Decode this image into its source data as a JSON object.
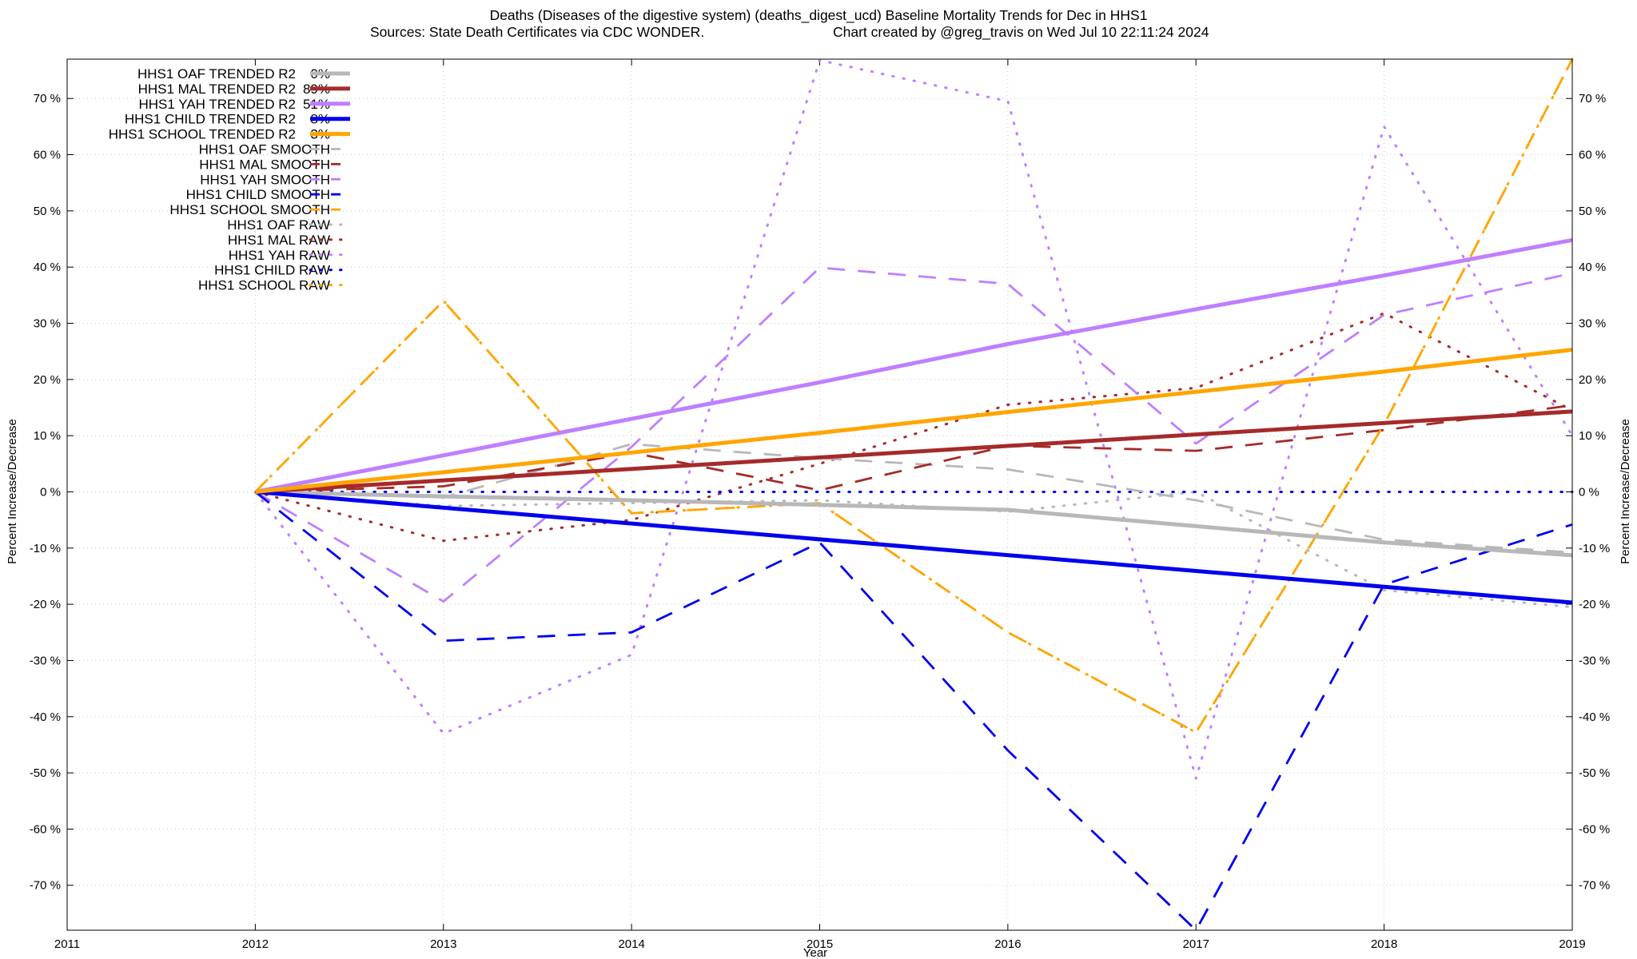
{
  "chart_data": {
    "type": "line",
    "title": "Deaths (Diseases of the digestive system) (deaths_digest_ucd)  Baseline Mortality Trends for Dec in HHS1",
    "subtitle_left": "Sources: State Death Certificates via CDC WONDER.",
    "subtitle_right": "Chart created by @greg_travis on Wed Jul 10 22:11:24 2024",
    "xlabel": "Year",
    "ylabel": "Percent Increase/Decrease",
    "ylabel_right": "Percent Increase/Decrease",
    "xlim": [
      2011,
      2019
    ],
    "ylim": [
      -78,
      77
    ],
    "x_ticks": [
      "2011",
      "2012",
      "2013",
      "2014",
      "2015",
      "2016",
      "2017",
      "2018",
      "2019"
    ],
    "y_ticks": [
      {
        "v": 70,
        "label": "70 %"
      },
      {
        "v": 60,
        "label": "60 %"
      },
      {
        "v": 50,
        "label": "50 %"
      },
      {
        "v": 40,
        "label": "40 %"
      },
      {
        "v": 30,
        "label": "30 %"
      },
      {
        "v": 20,
        "label": "20 %"
      },
      {
        "v": 10,
        "label": "10 %"
      },
      {
        "v": 0,
        "label": "0 %"
      },
      {
        "v": -10,
        "label": "-10 %"
      },
      {
        "v": -20,
        "label": "-20 %"
      },
      {
        "v": -30,
        "label": "-30 %"
      },
      {
        "v": -40,
        "label": "-40 %"
      },
      {
        "v": -50,
        "label": "-50 %"
      },
      {
        "v": -60,
        "label": "-60 %"
      },
      {
        "v": -70,
        "label": "-70 %"
      }
    ],
    "grid": true,
    "legend_position": "top-left",
    "colors": {
      "oaf": "#b8b8b8",
      "mal": "#a52a2a",
      "yah": "#bf7fff",
      "child": "#0000ee",
      "school": "#ffa500"
    },
    "series": [
      {
        "name": "HHS1 OAF TRENDED R2",
        "r2": "0%",
        "color": "oaf",
        "style": "solid",
        "x": [
          2012,
          2013,
          2014,
          2015,
          2016,
          2017,
          2018,
          2019
        ],
        "y": [
          0,
          -0.8,
          -1.5,
          -2.3,
          -3.2,
          -6.1,
          -9.0,
          -11.3
        ]
      },
      {
        "name": "HHS1 MAL TRENDED R2",
        "r2": "89%",
        "color": "mal",
        "style": "solid",
        "x": [
          2012,
          2019
        ],
        "y": [
          0,
          14.3
        ]
      },
      {
        "name": "HHS1 YAH TRENDED R2",
        "r2": "51%",
        "color": "yah",
        "style": "solid",
        "x": [
          2012,
          2013,
          2014,
          2015,
          2016,
          2017,
          2018,
          2019
        ],
        "y": [
          0,
          6.5,
          13.0,
          19.5,
          26.3,
          32.5,
          38.5,
          44.8
        ]
      },
      {
        "name": "HHS1 CHILD TRENDED R2",
        "r2": "8%",
        "color": "child",
        "style": "solid",
        "x": [
          2012,
          2019
        ],
        "y": [
          0,
          -19.7
        ]
      },
      {
        "name": "HHS1 SCHOOL TRENDED R2",
        "r2": "3%",
        "color": "school",
        "style": "solid",
        "x": [
          2012,
          2013,
          2014,
          2015,
          2016,
          2017,
          2018,
          2019
        ],
        "y": [
          0,
          3.5,
          7.0,
          10.5,
          14.2,
          17.8,
          21.4,
          25.3
        ]
      },
      {
        "name": "HHS1 OAF SMOOTH",
        "r2": "",
        "color": "oaf",
        "style": "dashed",
        "x": [
          2012,
          2013,
          2014,
          2015,
          2016,
          2017,
          2018,
          2019
        ],
        "y": [
          0,
          -1.0,
          8.5,
          6.0,
          4.0,
          -1.5,
          -8.5,
          -10.8
        ]
      },
      {
        "name": "HHS1 MAL SMOOTH",
        "r2": "",
        "color": "mal",
        "style": "dashed",
        "x": [
          2012,
          2013,
          2014,
          2015,
          2016,
          2017,
          2018,
          2019
        ],
        "y": [
          0,
          1.0,
          7.0,
          0.3,
          8.2,
          7.3,
          11.0,
          15.4
        ]
      },
      {
        "name": "HHS1 YAH SMOOTH",
        "r2": "",
        "color": "yah",
        "style": "dashed",
        "x": [
          2012,
          2013,
          2014,
          2015,
          2016,
          2017,
          2018,
          2019
        ],
        "y": [
          0,
          -19.5,
          8.0,
          39.9,
          37.0,
          8.6,
          31.5,
          38.9
        ]
      },
      {
        "name": "HHS1 CHILD SMOOTH",
        "r2": "",
        "color": "child",
        "style": "dashed",
        "x": [
          2012,
          2013,
          2014,
          2015,
          2016,
          2017,
          2018,
          2019
        ],
        "y": [
          0,
          -26.5,
          -25.0,
          -9.0,
          -46.0,
          -78.0,
          -16.5,
          -5.8
        ]
      },
      {
        "name": "HHS1 SCHOOL SMOOTH",
        "r2": "",
        "color": "school",
        "style": "dashed",
        "x": [
          2012,
          2013,
          2014,
          2015,
          2016,
          2017,
          2018,
          2019
        ],
        "y": [
          0,
          34.0,
          -3.8,
          -2.0,
          -25.0,
          -42.8,
          12.0,
          77.0
        ]
      },
      {
        "name": "HHS1 OAF RAW",
        "r2": "",
        "color": "oaf",
        "style": "dotted",
        "x": [
          2012,
          2013,
          2014,
          2015,
          2016,
          2017,
          2018,
          2019
        ],
        "y": [
          0,
          -2.5,
          -2.0,
          -1.5,
          -3.5,
          0.0,
          -17.5,
          -20.5
        ]
      },
      {
        "name": "HHS1 MAL RAW",
        "r2": "",
        "color": "mal",
        "style": "dotted",
        "x": [
          2012,
          2013,
          2014,
          2015,
          2016,
          2017,
          2018,
          2019
        ],
        "y": [
          0,
          -8.7,
          -5.0,
          5.0,
          15.5,
          18.5,
          31.8,
          14.5
        ]
      },
      {
        "name": "HHS1 YAH RAW",
        "r2": "",
        "color": "yah",
        "style": "dotted",
        "x": [
          2012,
          2013,
          2014,
          2015,
          2016,
          2017,
          2018,
          2019
        ],
        "y": [
          0,
          -43.0,
          -29.0,
          76.8,
          69.5,
          -51.0,
          65.0,
          10.0
        ]
      },
      {
        "name": "HHS1 CHILD RAW",
        "r2": "",
        "color": "child",
        "style": "dotted",
        "x": [
          2012,
          2019
        ],
        "y": [
          0,
          0
        ]
      },
      {
        "name": "HHS1 SCHOOL RAW",
        "r2": "",
        "color": "school",
        "style": "dotted",
        "x": [
          2012,
          2013,
          2014,
          2015,
          2016,
          2017,
          2018,
          2019
        ],
        "y": [
          0,
          34.0,
          -3.8,
          -2.0,
          -25.0,
          -42.8,
          12.0,
          77.0
        ]
      }
    ]
  }
}
